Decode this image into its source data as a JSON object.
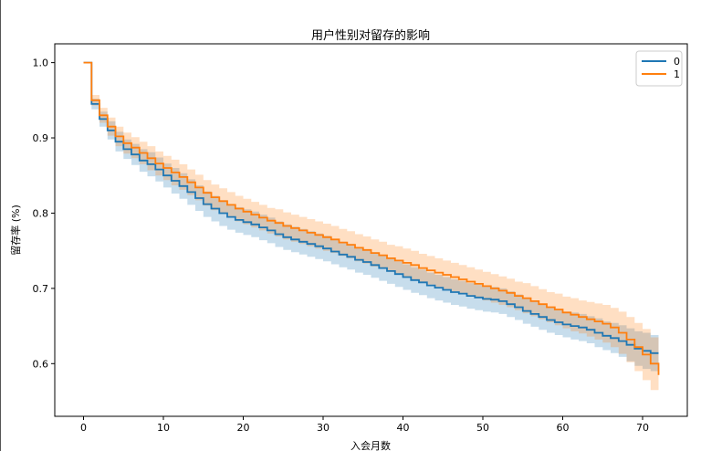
{
  "chart_data": {
    "type": "line",
    "title": "用户性别对留存的影响",
    "xlabel": "入会月数",
    "ylabel": "留存率 (%)",
    "xlim": [
      -3.6,
      75.6
    ],
    "ylim": [
      0.53,
      1.025
    ],
    "xticks": [
      0,
      10,
      20,
      30,
      40,
      50,
      60,
      70
    ],
    "yticks": [
      0.6,
      0.7,
      0.8,
      0.9,
      1.0
    ],
    "ytick_labels": [
      "0.6",
      "0.7",
      "0.8",
      "0.9",
      "1.0"
    ],
    "legend_position": "top-right",
    "step": true,
    "confidence_band": true,
    "x": [
      0,
      1,
      2,
      3,
      4,
      5,
      6,
      7,
      8,
      9,
      10,
      11,
      12,
      13,
      14,
      15,
      16,
      17,
      18,
      19,
      20,
      21,
      22,
      23,
      24,
      25,
      26,
      27,
      28,
      29,
      30,
      31,
      32,
      33,
      34,
      35,
      36,
      37,
      38,
      39,
      40,
      41,
      42,
      43,
      44,
      45,
      46,
      47,
      48,
      49,
      50,
      51,
      52,
      53,
      54,
      55,
      56,
      57,
      58,
      59,
      60,
      61,
      62,
      63,
      64,
      65,
      66,
      67,
      68,
      69,
      70,
      71,
      72
    ],
    "series": [
      {
        "name": "0",
        "color": "#1f77b4",
        "values": [
          1.0,
          0.945,
          0.925,
          0.91,
          0.895,
          0.885,
          0.878,
          0.87,
          0.865,
          0.858,
          0.85,
          0.843,
          0.836,
          0.828,
          0.82,
          0.812,
          0.806,
          0.8,
          0.795,
          0.791,
          0.788,
          0.785,
          0.781,
          0.777,
          0.772,
          0.768,
          0.765,
          0.762,
          0.759,
          0.756,
          0.753,
          0.749,
          0.745,
          0.742,
          0.738,
          0.735,
          0.731,
          0.727,
          0.723,
          0.719,
          0.715,
          0.711,
          0.708,
          0.704,
          0.701,
          0.698,
          0.695,
          0.693,
          0.69,
          0.688,
          0.686,
          0.685,
          0.683,
          0.679,
          0.675,
          0.67,
          0.666,
          0.662,
          0.658,
          0.655,
          0.652,
          0.65,
          0.648,
          0.645,
          0.641,
          0.637,
          0.634,
          0.63,
          0.625,
          0.62,
          0.617,
          0.614,
          0.614
        ],
        "lower": [
          1.0,
          0.938,
          0.915,
          0.898,
          0.882,
          0.872,
          0.864,
          0.855,
          0.849,
          0.842,
          0.834,
          0.826,
          0.819,
          0.811,
          0.803,
          0.795,
          0.789,
          0.783,
          0.778,
          0.774,
          0.771,
          0.768,
          0.764,
          0.76,
          0.755,
          0.751,
          0.748,
          0.745,
          0.742,
          0.739,
          0.736,
          0.732,
          0.728,
          0.725,
          0.721,
          0.718,
          0.714,
          0.71,
          0.706,
          0.702,
          0.698,
          0.694,
          0.691,
          0.687,
          0.684,
          0.681,
          0.678,
          0.676,
          0.673,
          0.671,
          0.669,
          0.668,
          0.666,
          0.662,
          0.658,
          0.653,
          0.649,
          0.645,
          0.641,
          0.638,
          0.635,
          0.632,
          0.63,
          0.627,
          0.622,
          0.618,
          0.614,
          0.609,
          0.603,
          0.597,
          0.593,
          0.59,
          0.59
        ],
        "upper": [
          1.0,
          0.952,
          0.935,
          0.922,
          0.908,
          0.898,
          0.892,
          0.885,
          0.881,
          0.874,
          0.866,
          0.86,
          0.853,
          0.845,
          0.837,
          0.829,
          0.823,
          0.817,
          0.812,
          0.808,
          0.805,
          0.802,
          0.798,
          0.794,
          0.789,
          0.785,
          0.782,
          0.779,
          0.776,
          0.773,
          0.77,
          0.766,
          0.762,
          0.759,
          0.755,
          0.752,
          0.748,
          0.744,
          0.74,
          0.736,
          0.732,
          0.728,
          0.725,
          0.721,
          0.718,
          0.715,
          0.712,
          0.71,
          0.707,
          0.705,
          0.703,
          0.702,
          0.7,
          0.696,
          0.692,
          0.687,
          0.683,
          0.679,
          0.675,
          0.672,
          0.669,
          0.668,
          0.666,
          0.663,
          0.66,
          0.656,
          0.654,
          0.651,
          0.647,
          0.643,
          0.641,
          0.638,
          0.638
        ]
      },
      {
        "name": "1",
        "color": "#ff7f0e",
        "values": [
          1.0,
          0.95,
          0.93,
          0.915,
          0.902,
          0.893,
          0.887,
          0.88,
          0.873,
          0.866,
          0.86,
          0.854,
          0.848,
          0.841,
          0.834,
          0.827,
          0.821,
          0.816,
          0.811,
          0.806,
          0.802,
          0.798,
          0.794,
          0.79,
          0.787,
          0.783,
          0.78,
          0.777,
          0.774,
          0.771,
          0.768,
          0.765,
          0.761,
          0.758,
          0.754,
          0.751,
          0.747,
          0.744,
          0.74,
          0.737,
          0.734,
          0.731,
          0.727,
          0.724,
          0.721,
          0.718,
          0.715,
          0.712,
          0.709,
          0.706,
          0.703,
          0.7,
          0.697,
          0.694,
          0.69,
          0.687,
          0.683,
          0.679,
          0.675,
          0.672,
          0.668,
          0.665,
          0.662,
          0.659,
          0.656,
          0.653,
          0.648,
          0.641,
          0.632,
          0.622,
          0.612,
          0.6,
          0.585
        ],
        "lower": [
          1.0,
          0.943,
          0.92,
          0.903,
          0.889,
          0.879,
          0.873,
          0.865,
          0.857,
          0.85,
          0.844,
          0.837,
          0.831,
          0.824,
          0.817,
          0.81,
          0.804,
          0.799,
          0.794,
          0.789,
          0.785,
          0.781,
          0.777,
          0.773,
          0.769,
          0.765,
          0.762,
          0.759,
          0.756,
          0.753,
          0.75,
          0.747,
          0.743,
          0.74,
          0.736,
          0.733,
          0.729,
          0.726,
          0.722,
          0.718,
          0.715,
          0.712,
          0.708,
          0.705,
          0.702,
          0.699,
          0.696,
          0.693,
          0.69,
          0.687,
          0.684,
          0.681,
          0.678,
          0.675,
          0.671,
          0.667,
          0.663,
          0.659,
          0.655,
          0.651,
          0.647,
          0.643,
          0.64,
          0.636,
          0.632,
          0.628,
          0.622,
          0.613,
          0.602,
          0.59,
          0.578,
          0.565,
          0.555
        ],
        "upper": [
          1.0,
          0.957,
          0.94,
          0.927,
          0.915,
          0.907,
          0.901,
          0.895,
          0.889,
          0.882,
          0.876,
          0.871,
          0.865,
          0.858,
          0.851,
          0.844,
          0.838,
          0.833,
          0.828,
          0.823,
          0.819,
          0.815,
          0.811,
          0.807,
          0.805,
          0.801,
          0.798,
          0.795,
          0.792,
          0.789,
          0.786,
          0.783,
          0.779,
          0.776,
          0.772,
          0.769,
          0.765,
          0.762,
          0.758,
          0.756,
          0.753,
          0.75,
          0.746,
          0.743,
          0.74,
          0.737,
          0.734,
          0.731,
          0.728,
          0.725,
          0.722,
          0.719,
          0.716,
          0.713,
          0.709,
          0.707,
          0.703,
          0.699,
          0.695,
          0.693,
          0.689,
          0.687,
          0.684,
          0.682,
          0.68,
          0.678,
          0.674,
          0.669,
          0.662,
          0.654,
          0.646,
          0.635,
          0.615
        ]
      }
    ]
  }
}
